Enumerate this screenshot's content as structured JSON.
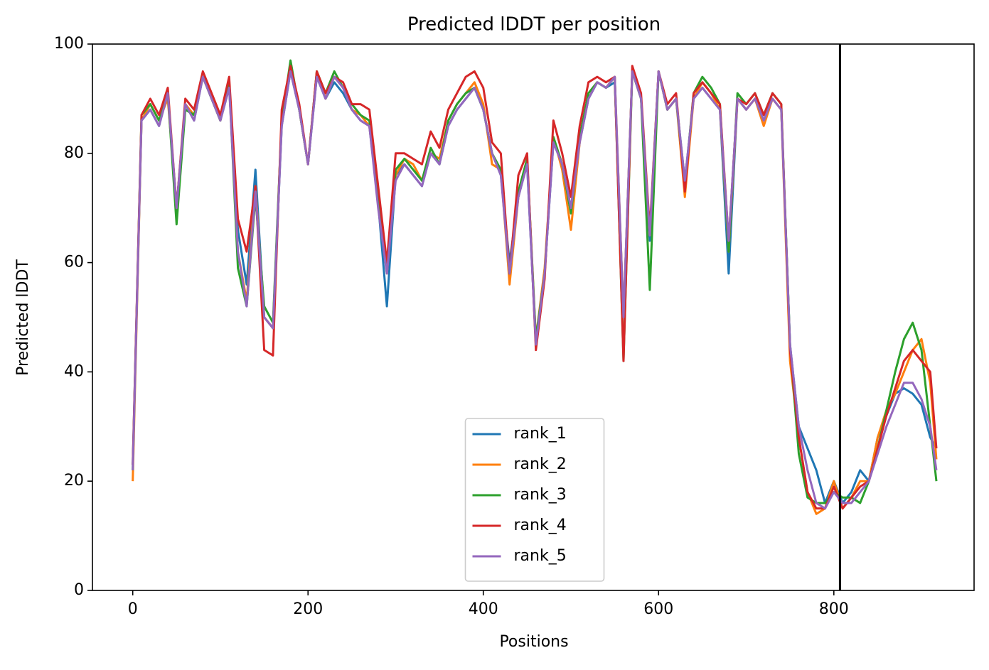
{
  "chart_data": {
    "type": "line",
    "title": "Predicted lDDT per position",
    "xlabel": "Positions",
    "ylabel": "Predicted lDDT",
    "x": [
      0,
      10,
      20,
      30,
      40,
      50,
      60,
      70,
      80,
      90,
      100,
      110,
      120,
      130,
      140,
      150,
      160,
      170,
      180,
      190,
      200,
      210,
      220,
      230,
      240,
      250,
      260,
      270,
      280,
      290,
      300,
      310,
      320,
      330,
      340,
      350,
      360,
      370,
      380,
      390,
      400,
      410,
      420,
      430,
      440,
      450,
      460,
      470,
      480,
      490,
      500,
      510,
      520,
      530,
      540,
      550,
      560,
      570,
      580,
      590,
      600,
      610,
      620,
      630,
      640,
      650,
      660,
      670,
      680,
      690,
      700,
      710,
      720,
      730,
      740,
      750,
      760,
      770,
      780,
      790,
      800,
      810,
      820,
      830,
      840,
      850,
      860,
      870,
      880,
      890,
      900,
      910,
      917
    ],
    "series": [
      {
        "name": "rank_1",
        "color": "#1f77b4",
        "values": [
          23,
          86,
          88,
          85,
          91,
          70,
          89,
          86,
          94,
          90,
          86,
          92,
          66,
          56,
          77,
          50,
          48,
          85,
          95,
          88,
          78,
          94,
          90,
          93,
          91,
          88,
          86,
          85,
          71,
          52,
          76,
          78,
          76,
          74,
          80,
          78,
          85,
          88,
          90,
          92,
          88,
          80,
          76,
          60,
          72,
          78,
          45,
          58,
          82,
          78,
          70,
          82,
          90,
          93,
          92,
          93,
          50,
          95,
          90,
          64,
          95,
          88,
          90,
          75,
          90,
          92,
          90,
          88,
          58,
          90,
          88,
          90,
          86,
          90,
          88,
          45,
          30,
          26,
          22,
          16,
          20,
          16,
          18,
          22,
          20,
          28,
          32,
          36,
          37,
          36,
          34,
          28,
          26
        ]
      },
      {
        "name": "rank_2",
        "color": "#ff7f0e",
        "values": [
          20,
          86,
          89,
          86,
          90,
          70,
          89,
          87,
          94,
          90,
          86,
          93,
          62,
          53,
          74,
          50,
          48,
          86,
          96,
          88,
          78,
          95,
          90,
          94,
          92,
          88,
          87,
          85,
          72,
          58,
          76,
          79,
          78,
          75,
          80,
          79,
          86,
          89,
          91,
          93,
          89,
          78,
          77,
          56,
          72,
          79,
          46,
          59,
          83,
          77,
          66,
          82,
          91,
          93,
          92,
          94,
          50,
          95,
          90,
          65,
          95,
          88,
          90,
          72,
          90,
          93,
          91,
          88,
          62,
          90,
          88,
          90,
          85,
          90,
          88,
          42,
          28,
          18,
          14,
          15,
          20,
          15,
          17,
          20,
          20,
          28,
          33,
          36,
          40,
          44,
          46,
          38,
          24
        ]
      },
      {
        "name": "rank_3",
        "color": "#2ca02c",
        "values": [
          22,
          87,
          89,
          86,
          91,
          67,
          88,
          87,
          94,
          90,
          86,
          93,
          59,
          52,
          72,
          52,
          49,
          86,
          97,
          88,
          78,
          95,
          91,
          95,
          92,
          89,
          87,
          86,
          72,
          60,
          77,
          79,
          77,
          75,
          81,
          78,
          86,
          89,
          91,
          92,
          88,
          80,
          77,
          58,
          73,
          79,
          46,
          58,
          83,
          78,
          69,
          83,
          91,
          93,
          92,
          94,
          42,
          95,
          90,
          55,
          95,
          88,
          90,
          74,
          91,
          94,
          92,
          89,
          62,
          91,
          89,
          91,
          87,
          91,
          89,
          45,
          25,
          17,
          16,
          16,
          18,
          17,
          17,
          16,
          20,
          26,
          33,
          40,
          46,
          49,
          44,
          30,
          20
        ]
      },
      {
        "name": "rank_4",
        "color": "#d62728",
        "values": [
          23,
          87,
          90,
          87,
          92,
          70,
          90,
          88,
          95,
          91,
          87,
          94,
          68,
          62,
          74,
          44,
          43,
          88,
          96,
          89,
          78,
          95,
          91,
          94,
          93,
          89,
          89,
          88,
          74,
          60,
          80,
          80,
          79,
          78,
          84,
          81,
          88,
          91,
          94,
          95,
          92,
          82,
          80,
          58,
          76,
          80,
          44,
          57,
          86,
          80,
          72,
          85,
          93,
          94,
          93,
          94,
          42,
          96,
          91,
          66,
          95,
          89,
          91,
          73,
          91,
          93,
          91,
          89,
          64,
          90,
          89,
          91,
          87,
          91,
          89,
          44,
          28,
          18,
          15,
          15,
          19,
          15,
          17,
          19,
          20,
          26,
          32,
          37,
          42,
          44,
          42,
          40,
          26
        ]
      },
      {
        "name": "rank_5",
        "color": "#9467bd",
        "values": [
          22,
          86,
          88,
          85,
          91,
          70,
          89,
          86,
          94,
          90,
          86,
          92,
          62,
          52,
          73,
          50,
          48,
          85,
          95,
          88,
          78,
          94,
          90,
          94,
          92,
          88,
          86,
          85,
          70,
          58,
          75,
          78,
          76,
          74,
          80,
          78,
          85,
          88,
          90,
          92,
          88,
          80,
          76,
          58,
          72,
          78,
          45,
          58,
          82,
          78,
          70,
          82,
          90,
          93,
          92,
          94,
          50,
          95,
          90,
          65,
          95,
          88,
          90,
          75,
          90,
          92,
          90,
          88,
          64,
          90,
          88,
          90,
          86,
          90,
          88,
          45,
          30,
          22,
          16,
          15,
          18,
          16,
          16,
          18,
          20,
          25,
          30,
          34,
          38,
          38,
          35,
          30,
          22
        ]
      }
    ],
    "vlines": [
      807
    ],
    "vline_color": "#000000",
    "xlim": [
      -46,
      960
    ],
    "xticks": [
      0,
      200,
      400,
      600,
      800
    ],
    "ylim": [
      0,
      100
    ],
    "yticks": [
      0,
      20,
      40,
      60,
      80,
      100
    ],
    "legend": "lower center"
  }
}
